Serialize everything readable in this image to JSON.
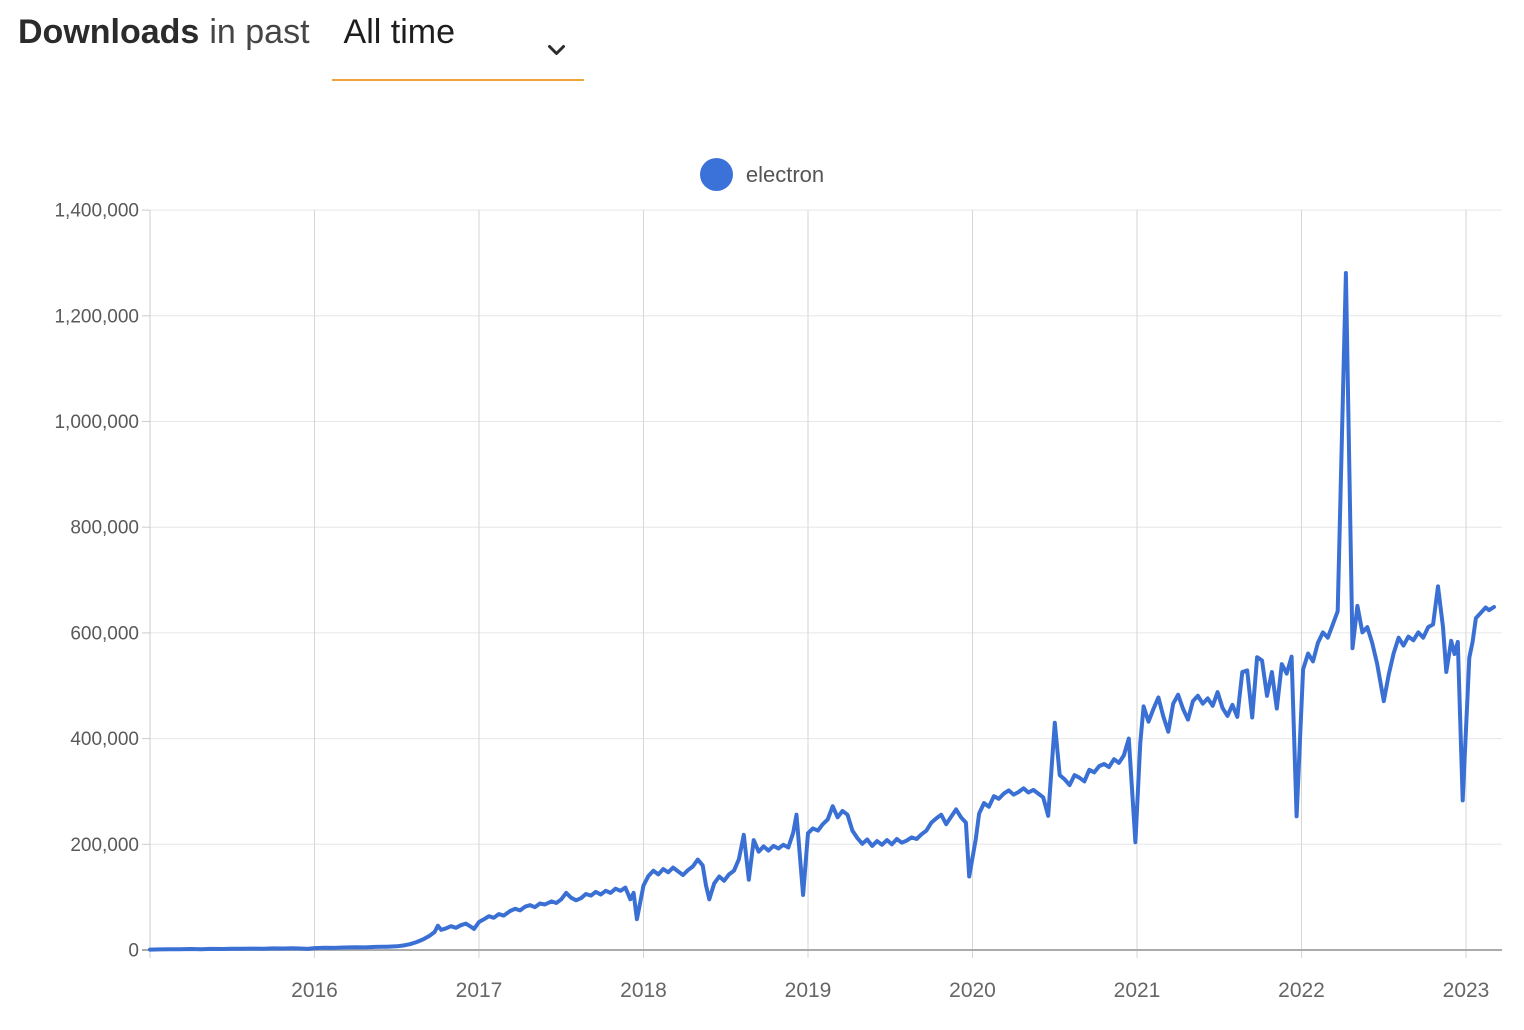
{
  "header": {
    "title_bold": "Downloads",
    "title_rest": "in past",
    "period_selected": "All time",
    "underline_color": "#f0a43c"
  },
  "chart_data": {
    "type": "line",
    "title": "Downloads in past All time",
    "xlabel": "",
    "ylabel": "",
    "xlim": [
      2015.0,
      2023.2
    ],
    "ylim": [
      0,
      1400000
    ],
    "grid": true,
    "legend_position": "top-center",
    "x_ticks": [
      {
        "value": 2016,
        "label": "2016"
      },
      {
        "value": 2017,
        "label": "2017"
      },
      {
        "value": 2018,
        "label": "2018"
      },
      {
        "value": 2019,
        "label": "2019"
      },
      {
        "value": 2020,
        "label": "2020"
      },
      {
        "value": 2021,
        "label": "2021"
      },
      {
        "value": 2022,
        "label": "2022"
      },
      {
        "value": 2023,
        "label": "2023"
      }
    ],
    "y_ticks": [
      {
        "value": 0,
        "label": "0"
      },
      {
        "value": 200000,
        "label": "200,000"
      },
      {
        "value": 400000,
        "label": "400,000"
      },
      {
        "value": 600000,
        "label": "600,000"
      },
      {
        "value": 800000,
        "label": "800,000"
      },
      {
        "value": 1000000,
        "label": "1,000,000"
      },
      {
        "value": 1200000,
        "label": "1,200,000"
      },
      {
        "value": 1400000,
        "label": "1,400,000"
      }
    ],
    "legend": {
      "entries": [
        {
          "label": "electron",
          "color": "#3b72d9"
        }
      ]
    },
    "series": [
      {
        "name": "electron",
        "color": "#3a70d4",
        "points": [
          [
            2015.0,
            800
          ],
          [
            2015.06,
            1200
          ],
          [
            2015.12,
            1500
          ],
          [
            2015.18,
            1300
          ],
          [
            2015.25,
            1800
          ],
          [
            2015.31,
            1600
          ],
          [
            2015.37,
            2100
          ],
          [
            2015.44,
            1900
          ],
          [
            2015.5,
            2400
          ],
          [
            2015.56,
            2200
          ],
          [
            2015.62,
            2700
          ],
          [
            2015.69,
            2500
          ],
          [
            2015.75,
            3000
          ],
          [
            2015.81,
            2800
          ],
          [
            2015.87,
            3300
          ],
          [
            2015.93,
            2600
          ],
          [
            2015.96,
            2000
          ],
          [
            2016.0,
            3600
          ],
          [
            2016.06,
            4200
          ],
          [
            2016.12,
            4000
          ],
          [
            2016.18,
            4800
          ],
          [
            2016.25,
            5200
          ],
          [
            2016.31,
            5000
          ],
          [
            2016.37,
            5800
          ],
          [
            2016.44,
            6200
          ],
          [
            2016.5,
            7000
          ],
          [
            2016.54,
            8500
          ],
          [
            2016.58,
            11000
          ],
          [
            2016.62,
            15000
          ],
          [
            2016.66,
            20000
          ],
          [
            2016.7,
            27000
          ],
          [
            2016.73,
            34000
          ],
          [
            2016.75,
            46000
          ],
          [
            2016.77,
            38000
          ],
          [
            2016.8,
            41000
          ],
          [
            2016.83,
            45000
          ],
          [
            2016.86,
            42000
          ],
          [
            2016.89,
            47000
          ],
          [
            2016.92,
            50000
          ],
          [
            2016.95,
            44000
          ],
          [
            2016.97,
            40000
          ],
          [
            2017.0,
            53000
          ],
          [
            2017.03,
            58000
          ],
          [
            2017.06,
            64000
          ],
          [
            2017.09,
            61000
          ],
          [
            2017.12,
            68000
          ],
          [
            2017.15,
            65000
          ],
          [
            2017.19,
            74000
          ],
          [
            2017.22,
            78000
          ],
          [
            2017.25,
            75000
          ],
          [
            2017.28,
            82000
          ],
          [
            2017.31,
            85000
          ],
          [
            2017.34,
            81000
          ],
          [
            2017.37,
            88000
          ],
          [
            2017.4,
            86000
          ],
          [
            2017.44,
            92000
          ],
          [
            2017.47,
            89000
          ],
          [
            2017.5,
            96000
          ],
          [
            2017.53,
            108000
          ],
          [
            2017.56,
            99000
          ],
          [
            2017.59,
            94000
          ],
          [
            2017.62,
            98000
          ],
          [
            2017.65,
            106000
          ],
          [
            2017.68,
            103000
          ],
          [
            2017.71,
            110000
          ],
          [
            2017.74,
            105000
          ],
          [
            2017.77,
            112000
          ],
          [
            2017.8,
            108000
          ],
          [
            2017.83,
            116000
          ],
          [
            2017.86,
            112000
          ],
          [
            2017.89,
            118000
          ],
          [
            2017.92,
            96000
          ],
          [
            2017.94,
            108000
          ],
          [
            2017.96,
            58000
          ],
          [
            2018.0,
            122000
          ],
          [
            2018.03,
            140000
          ],
          [
            2018.06,
            150000
          ],
          [
            2018.09,
            143000
          ],
          [
            2018.12,
            153000
          ],
          [
            2018.15,
            147000
          ],
          [
            2018.18,
            156000
          ],
          [
            2018.21,
            149000
          ],
          [
            2018.24,
            142000
          ],
          [
            2018.27,
            151000
          ],
          [
            2018.3,
            158000
          ],
          [
            2018.33,
            171000
          ],
          [
            2018.36,
            160000
          ],
          [
            2018.38,
            122000
          ],
          [
            2018.4,
            96000
          ],
          [
            2018.43,
            126000
          ],
          [
            2018.46,
            139000
          ],
          [
            2018.49,
            131000
          ],
          [
            2018.52,
            143000
          ],
          [
            2018.55,
            150000
          ],
          [
            2018.58,
            172000
          ],
          [
            2018.61,
            218000
          ],
          [
            2018.64,
            133000
          ],
          [
            2018.67,
            208000
          ],
          [
            2018.7,
            186000
          ],
          [
            2018.73,
            196000
          ],
          [
            2018.76,
            188000
          ],
          [
            2018.79,
            197000
          ],
          [
            2018.82,
            192000
          ],
          [
            2018.85,
            199000
          ],
          [
            2018.88,
            194000
          ],
          [
            2018.91,
            222000
          ],
          [
            2018.93,
            256000
          ],
          [
            2018.97,
            104000
          ],
          [
            2019.0,
            221000
          ],
          [
            2019.03,
            230000
          ],
          [
            2019.06,
            226000
          ],
          [
            2019.09,
            238000
          ],
          [
            2019.12,
            247000
          ],
          [
            2019.15,
            272000
          ],
          [
            2019.18,
            251000
          ],
          [
            2019.21,
            263000
          ],
          [
            2019.24,
            256000
          ],
          [
            2019.27,
            226000
          ],
          [
            2019.3,
            212000
          ],
          [
            2019.33,
            201000
          ],
          [
            2019.36,
            209000
          ],
          [
            2019.39,
            197000
          ],
          [
            2019.42,
            206000
          ],
          [
            2019.45,
            199000
          ],
          [
            2019.48,
            208000
          ],
          [
            2019.51,
            200000
          ],
          [
            2019.54,
            210000
          ],
          [
            2019.57,
            203000
          ],
          [
            2019.6,
            207000
          ],
          [
            2019.63,
            213000
          ],
          [
            2019.66,
            210000
          ],
          [
            2019.69,
            219000
          ],
          [
            2019.72,
            226000
          ],
          [
            2019.75,
            241000
          ],
          [
            2019.78,
            249000
          ],
          [
            2019.81,
            256000
          ],
          [
            2019.84,
            238000
          ],
          [
            2019.87,
            252000
          ],
          [
            2019.9,
            266000
          ],
          [
            2019.93,
            251000
          ],
          [
            2019.96,
            241000
          ],
          [
            2019.98,
            139000
          ],
          [
            2020.02,
            210000
          ],
          [
            2020.04,
            258000
          ],
          [
            2020.07,
            278000
          ],
          [
            2020.1,
            271000
          ],
          [
            2020.13,
            291000
          ],
          [
            2020.16,
            286000
          ],
          [
            2020.19,
            296000
          ],
          [
            2020.22,
            302000
          ],
          [
            2020.25,
            294000
          ],
          [
            2020.28,
            299000
          ],
          [
            2020.31,
            306000
          ],
          [
            2020.34,
            298000
          ],
          [
            2020.37,
            303000
          ],
          [
            2020.4,
            296000
          ],
          [
            2020.43,
            289000
          ],
          [
            2020.46,
            254000
          ],
          [
            2020.5,
            430000
          ],
          [
            2020.53,
            331000
          ],
          [
            2020.56,
            323000
          ],
          [
            2020.59,
            312000
          ],
          [
            2020.62,
            331000
          ],
          [
            2020.65,
            326000
          ],
          [
            2020.68,
            319000
          ],
          [
            2020.71,
            341000
          ],
          [
            2020.74,
            336000
          ],
          [
            2020.77,
            348000
          ],
          [
            2020.8,
            352000
          ],
          [
            2020.83,
            346000
          ],
          [
            2020.86,
            361000
          ],
          [
            2020.89,
            354000
          ],
          [
            2020.92,
            368000
          ],
          [
            2020.95,
            400000
          ],
          [
            2020.99,
            204000
          ],
          [
            2021.02,
            392000
          ],
          [
            2021.04,
            461000
          ],
          [
            2021.07,
            432000
          ],
          [
            2021.1,
            456000
          ],
          [
            2021.13,
            478000
          ],
          [
            2021.16,
            442000
          ],
          [
            2021.19,
            413000
          ],
          [
            2021.22,
            466000
          ],
          [
            2021.25,
            483000
          ],
          [
            2021.28,
            456000
          ],
          [
            2021.31,
            436000
          ],
          [
            2021.34,
            471000
          ],
          [
            2021.37,
            481000
          ],
          [
            2021.4,
            466000
          ],
          [
            2021.43,
            476000
          ],
          [
            2021.46,
            462000
          ],
          [
            2021.49,
            488000
          ],
          [
            2021.52,
            458000
          ],
          [
            2021.55,
            443000
          ],
          [
            2021.58,
            464000
          ],
          [
            2021.61,
            441000
          ],
          [
            2021.64,
            526000
          ],
          [
            2021.67,
            529000
          ],
          [
            2021.7,
            440000
          ],
          [
            2021.73,
            554000
          ],
          [
            2021.76,
            548000
          ],
          [
            2021.79,
            481000
          ],
          [
            2021.82,
            526000
          ],
          [
            2021.85,
            457000
          ],
          [
            2021.88,
            541000
          ],
          [
            2021.91,
            523000
          ],
          [
            2021.94,
            555000
          ],
          [
            2021.97,
            253000
          ],
          [
            2022.01,
            531000
          ],
          [
            2022.04,
            561000
          ],
          [
            2022.07,
            546000
          ],
          [
            2022.1,
            581000
          ],
          [
            2022.13,
            601000
          ],
          [
            2022.16,
            591000
          ],
          [
            2022.19,
            616000
          ],
          [
            2022.22,
            641000
          ],
          [
            2022.27,
            1281000
          ],
          [
            2022.31,
            571000
          ],
          [
            2022.34,
            651000
          ],
          [
            2022.37,
            601000
          ],
          [
            2022.4,
            611000
          ],
          [
            2022.43,
            581000
          ],
          [
            2022.46,
            541000
          ],
          [
            2022.5,
            471000
          ],
          [
            2022.53,
            521000
          ],
          [
            2022.56,
            561000
          ],
          [
            2022.59,
            591000
          ],
          [
            2022.62,
            576000
          ],
          [
            2022.65,
            593000
          ],
          [
            2022.68,
            586000
          ],
          [
            2022.71,
            601000
          ],
          [
            2022.74,
            591000
          ],
          [
            2022.77,
            611000
          ],
          [
            2022.8,
            616000
          ],
          [
            2022.83,
            688000
          ],
          [
            2022.86,
            611000
          ],
          [
            2022.88,
            526000
          ],
          [
            2022.91,
            585000
          ],
          [
            2022.93,
            560000
          ],
          [
            2022.95,
            583000
          ],
          [
            2022.98,
            283000
          ],
          [
            2023.02,
            553000
          ],
          [
            2023.04,
            583000
          ],
          [
            2023.06,
            628000
          ],
          [
            2023.09,
            638000
          ],
          [
            2023.12,
            648000
          ],
          [
            2023.14,
            643000
          ],
          [
            2023.17,
            649000
          ]
        ]
      }
    ]
  }
}
